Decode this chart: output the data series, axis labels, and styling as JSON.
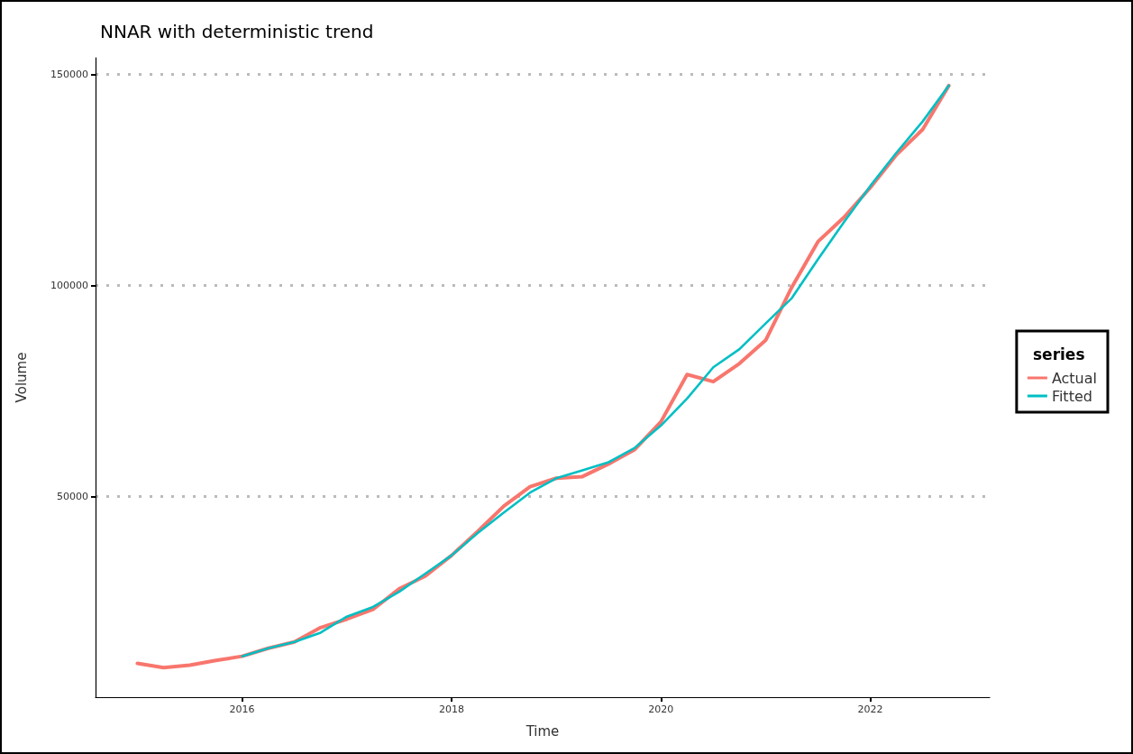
{
  "chart_data": {
    "type": "line",
    "title": "NNAR with deterministic trend",
    "xlabel": "Time",
    "ylabel": "Volume",
    "legend_title": "series",
    "legend": "right",
    "grid": "y",
    "marker": "none",
    "line_style": "solid",
    "xlim": [
      2014.6,
      2023.14
    ],
    "xticks": [
      2016,
      2018,
      2020,
      2022
    ],
    "ylim": [
      2400,
      154000
    ],
    "yticks": [
      50000,
      100000,
      150000
    ],
    "series": [
      {
        "name": "Actual",
        "color": "#f8766d",
        "x": [
          2015,
          2015.25,
          2015.5,
          2015.75,
          2016,
          2016.25,
          2016.5,
          2016.75,
          2017,
          2017.25,
          2017.5,
          2017.75,
          2018,
          2018.25,
          2018.5,
          2018.75,
          2019,
          2019.25,
          2019.5,
          2019.75,
          2020,
          2020.25,
          2020.5,
          2020.75,
          2021,
          2021.25,
          2021.5,
          2021.75,
          2022,
          2022.25,
          2022.5,
          2022.75
        ],
        "values": [
          10400,
          9400,
          10000,
          11100,
          12100,
          14000,
          15500,
          18900,
          20900,
          23200,
          28100,
          31100,
          36000,
          41700,
          47700,
          52300,
          54300,
          54700,
          57700,
          61100,
          67700,
          78900,
          77200,
          81500,
          87000,
          99600,
          110400,
          116200,
          123200,
          131000,
          137000,
          147400
        ]
      },
      {
        "name": "Fitted",
        "color": "#00bfc4",
        "x": [
          2016,
          2016.25,
          2016.5,
          2016.75,
          2017,
          2017.25,
          2017.5,
          2017.75,
          2018,
          2018.25,
          2018.5,
          2018.75,
          2019,
          2019.25,
          2019.5,
          2019.75,
          2020,
          2020.25,
          2020.5,
          2020.75,
          2021,
          2021.25,
          2021.5,
          2021.75,
          2022,
          2022.25,
          2022.5,
          2022.75
        ],
        "values": [
          12100,
          14000,
          15500,
          17700,
          21500,
          23800,
          27400,
          31700,
          36000,
          41300,
          46200,
          50900,
          54300,
          56200,
          58100,
          61500,
          66800,
          73200,
          80600,
          84900,
          91000,
          97000,
          106200,
          115100,
          123600,
          131500,
          138900,
          147400
        ]
      }
    ]
  }
}
